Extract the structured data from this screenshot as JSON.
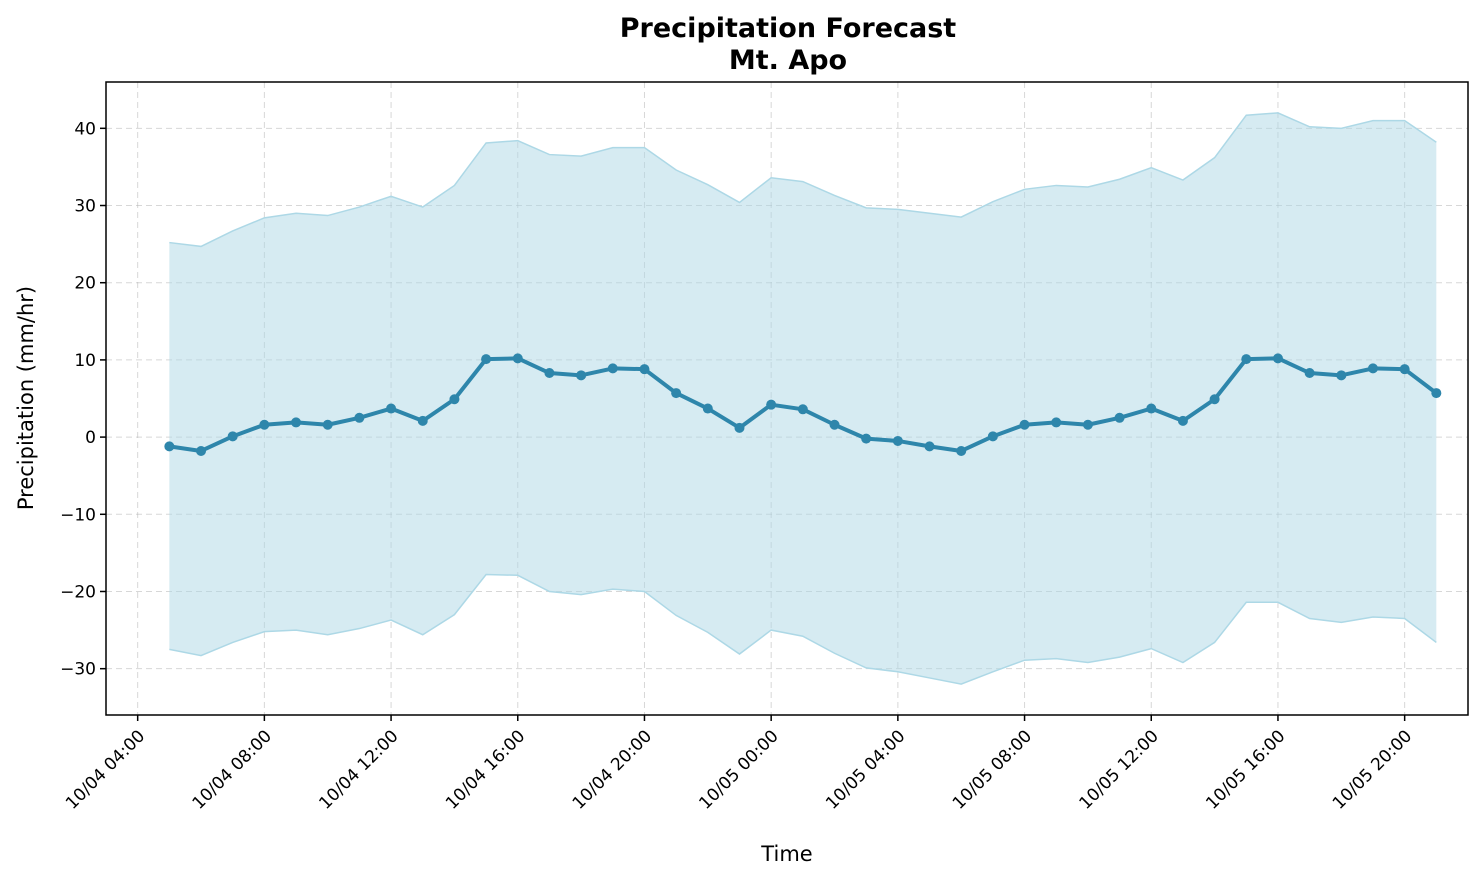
{
  "chart_data": {
    "type": "line",
    "title": "Precipitation Forecast",
    "subtitle": "Mt. Apo",
    "xlabel": "Time",
    "ylabel": "Precipitation (mm/hr)",
    "ylim": [
      -36,
      46
    ],
    "y_ticks": [
      -30,
      -20,
      -10,
      0,
      10,
      20,
      30,
      40
    ],
    "y_tick_labels": [
      "−30",
      "−20",
      "−10",
      "0",
      "10",
      "20",
      "30",
      "40"
    ],
    "x_range": [
      "10/04 03:00",
      "10/05 22:00"
    ],
    "x_ticks": [
      "10/04 04:00",
      "10/04 08:00",
      "10/04 12:00",
      "10/04 16:00",
      "10/04 20:00",
      "10/05 00:00",
      "10/05 04:00",
      "10/05 08:00",
      "10/05 12:00",
      "10/05 16:00",
      "10/05 20:00"
    ],
    "grid": true,
    "colors": {
      "line": "#2e86ab",
      "band": "#add8e6"
    },
    "x": [
      "10/04 05:00",
      "10/04 06:00",
      "10/04 07:00",
      "10/04 08:00",
      "10/04 09:00",
      "10/04 10:00",
      "10/04 11:00",
      "10/04 12:00",
      "10/04 13:00",
      "10/04 14:00",
      "10/04 15:00",
      "10/04 16:00",
      "10/04 17:00",
      "10/04 18:00",
      "10/04 19:00",
      "10/04 20:00",
      "10/04 21:00",
      "10/04 22:00",
      "10/04 23:00",
      "10/05 00:00",
      "10/05 01:00",
      "10/05 02:00",
      "10/05 03:00",
      "10/05 04:00",
      "10/05 05:00",
      "10/05 06:00",
      "10/05 07:00",
      "10/05 08:00",
      "10/05 09:00",
      "10/05 10:00",
      "10/05 11:00",
      "10/05 12:00",
      "10/05 13:00",
      "10/05 14:00",
      "10/05 15:00",
      "10/05 16:00",
      "10/05 17:00",
      "10/05 18:00",
      "10/05 19:00",
      "10/05 20:00",
      "10/05 21:00"
    ],
    "series": [
      {
        "values": [
          -1.2,
          -1.8,
          0.1,
          1.6,
          1.9,
          1.6,
          2.5,
          3.7,
          2.1,
          4.9,
          10.1,
          10.2,
          8.3,
          8.0,
          8.9,
          8.8,
          5.7,
          3.7,
          1.2,
          4.2,
          3.6,
          1.6,
          -0.2,
          -0.5,
          -1.2,
          -1.8,
          0.1,
          1.6,
          1.9,
          1.6,
          2.5,
          3.7,
          2.1,
          4.9,
          10.1,
          10.2,
          8.3,
          8.0,
          8.9,
          8.8,
          5.7
        ]
      }
    ],
    "band": {
      "upper": [
        25.2,
        24.7,
        26.7,
        28.4,
        29.0,
        28.7,
        29.8,
        31.2,
        29.8,
        32.6,
        38.1,
        38.4,
        36.6,
        36.4,
        37.5,
        37.5,
        34.6,
        32.7,
        30.4,
        33.6,
        33.1,
        31.3,
        29.7,
        29.5,
        29.0,
        28.5,
        30.5,
        32.1,
        32.6,
        32.4,
        33.4,
        34.9,
        33.3,
        36.2,
        41.7,
        42.0,
        40.2,
        40.0,
        41.0,
        41.0,
        38.2
      ],
      "lower": [
        -27.5,
        -28.3,
        -26.6,
        -25.2,
        -25.0,
        -25.6,
        -24.8,
        -23.7,
        -25.6,
        -23.0,
        -17.8,
        -17.9,
        -20.0,
        -20.4,
        -19.7,
        -20.0,
        -23.1,
        -25.3,
        -28.1,
        -25.0,
        -25.8,
        -28.0,
        -29.9,
        -30.4,
        -31.2,
        -32.0,
        -30.4,
        -28.9,
        -28.7,
        -29.2,
        -28.5,
        -27.4,
        -29.2,
        -26.6,
        -21.4,
        -21.4,
        -23.5,
        -24.0,
        -23.3,
        -23.5,
        -26.6
      ]
    }
  }
}
